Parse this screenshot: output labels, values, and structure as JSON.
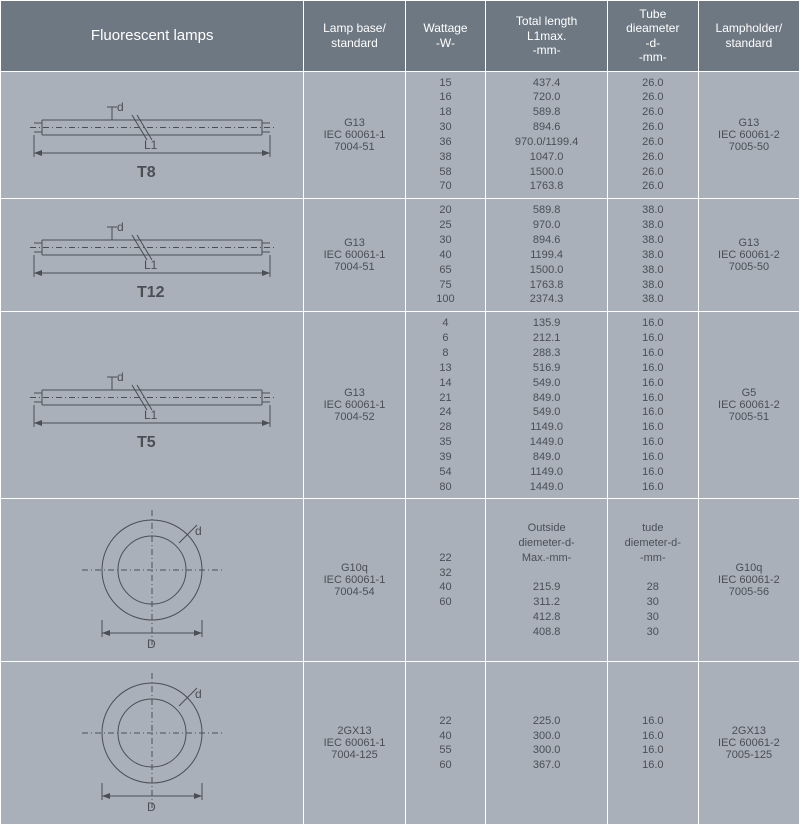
{
  "headers": {
    "diagram": "Fluorescent lamps",
    "base": "Lamp base/\nstandard",
    "wattage": "Wattage\n-W-",
    "length": "Total length\nL1max.\n-mm-",
    "diameter": "Tube\ndieameter\n-d-\n-mm-",
    "holder": "Lampholder/\nstandard"
  },
  "rows": [
    {
      "name": "T8",
      "shape": "tube",
      "base": "G13\nIEC 60061-1\n7004-51",
      "holder": "G13\nIEC 60061-2\n7005-50",
      "watt": [
        "15",
        "16",
        "18",
        "30",
        "36",
        "38",
        "58",
        "70"
      ],
      "len": [
        "437.4",
        "720.0",
        "589.8",
        "894.6",
        "970.0/1199.4",
        "1047.0",
        "1500.0",
        "1763.8"
      ],
      "diam": [
        "26.0",
        "26.0",
        "26.0",
        "26.0",
        "26.0",
        "26.0",
        "26.0",
        "26.0"
      ]
    },
    {
      "name": "T12",
      "shape": "tube",
      "base": "G13\nIEC 60061-1\n7004-51",
      "holder": "G13\nIEC 60061-2\n7005-50",
      "watt": [
        "20",
        "25",
        "30",
        "40",
        "65",
        "75",
        "100"
      ],
      "len": [
        "589.8",
        "970.0",
        "894.6",
        "1199.4",
        "1500.0",
        "1763.8",
        "2374.3"
      ],
      "diam": [
        "38.0",
        "38.0",
        "38.0",
        "38.0",
        "38.0",
        "38.0",
        "38.0"
      ]
    },
    {
      "name": "T5",
      "shape": "tube",
      "base": "G13\nIEC 60061-1\n7004-52",
      "holder": "G5\nIEC 60061-2\n7005-51",
      "watt": [
        "4",
        "6",
        "8",
        "13",
        "14",
        "21",
        "24",
        "28",
        "35",
        "39",
        "54",
        "80"
      ],
      "len": [
        "135.9",
        "212.1",
        "288.3",
        "516.9",
        "549.0",
        "849.0",
        "549.0",
        "1149.0",
        "1449.0",
        "849.0",
        "1149.0",
        "1449.0"
      ],
      "diam": [
        "16.0",
        "16.0",
        "16.0",
        "16.0",
        "16.0",
        "16.0",
        "16.0",
        "16.0",
        "16.0",
        "16.0",
        "16.0",
        "16.0"
      ]
    },
    {
      "name": "circle1",
      "shape": "circle",
      "base": "G10q\nIEC 60061-1\n7004-54",
      "holder": "G10q\nIEC 60061-2\n7005-56",
      "len_header": "Outside\ndiemeter-d-\nMax.-mm-",
      "diam_header": "tude\ndiemeter-d-\n-mm-",
      "watt": [
        "22",
        "32",
        "40",
        "60"
      ],
      "len": [
        "215.9",
        "311.2",
        "412.8",
        "408.8"
      ],
      "diam": [
        "28",
        "30",
        "30",
        "30"
      ]
    },
    {
      "name": "circle2",
      "shape": "circle",
      "base": "2GX13\nIEC 60061-1\n7004-125",
      "holder": "2GX13\nIEC 60061-2\n7005-125",
      "watt": [
        "22",
        "40",
        "55",
        "60"
      ],
      "len": [
        "225.0",
        "300.0",
        "300.0",
        "367.0"
      ],
      "diam": [
        "16.0",
        "16.0",
        "16.0",
        "16.0"
      ]
    }
  ]
}
